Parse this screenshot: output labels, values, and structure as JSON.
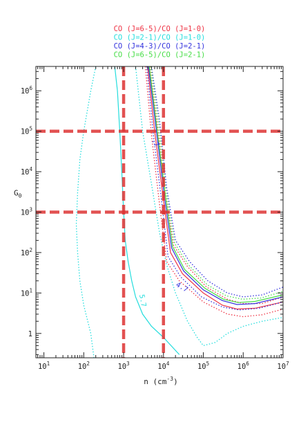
{
  "chart_data": {
    "type": "line",
    "xlabel": "n (cm",
    "xlabel_sup": "-3",
    "xlabel_end": ")",
    "ylabel": "G",
    "ylabel_sub": "0",
    "xscale": "log",
    "yscale": "log",
    "xlim": [
      6.3,
      10000000
    ],
    "ylim": [
      0.25,
      4000000
    ],
    "x_ticks": [
      {
        "exp": "1"
      },
      {
        "exp": "2"
      },
      {
        "exp": "3"
      },
      {
        "exp": "4"
      },
      {
        "exp": "5"
      },
      {
        "exp": "6"
      },
      {
        "exp": "7"
      }
    ],
    "y_ticks": [
      {
        "value": 1,
        "label": "1",
        "exp": ""
      },
      {
        "value": 10,
        "label": "10",
        "exp": "1"
      },
      {
        "value": 100,
        "label": "10",
        "exp": "2"
      },
      {
        "value": 1000,
        "label": "10",
        "exp": "3"
      },
      {
        "value": 10000,
        "label": "10",
        "exp": "4"
      },
      {
        "value": 100000,
        "label": "10",
        "exp": "5"
      },
      {
        "value": 1000000,
        "label": "10",
        "exp": "6"
      }
    ],
    "legend": [
      {
        "label": "CO (J=6-5)/CO (J=1-0)",
        "color": "#ee3344"
      },
      {
        "label": "CO (J=2-1)/CO (J=1-0)",
        "color": "#22dddd"
      },
      {
        "label": "CO (J=4-3)/CO (J=2-1)",
        "color": "#3333dd"
      },
      {
        "label": "CO (J=6-5)/CO (J=2-1)",
        "color": "#44dd44"
      }
    ],
    "contour_labels": [
      {
        "text": "5.7",
        "x": 2500,
        "y": 9,
        "color": "#22dddd",
        "rotate": 80
      },
      {
        "text": ".7",
        "x": 5000,
        "y": 60000,
        "color": "#3333dd",
        "rotate": 60
      },
      {
        "text": "4.7",
        "x": 20000,
        "y": 15,
        "color": "#3333dd",
        "rotate": 30
      }
    ],
    "reference_lines": {
      "color": "#dd3333",
      "vertical_x": [
        1000,
        10000
      ],
      "horizontal_y": [
        1000,
        100000
      ]
    },
    "series": [
      {
        "color": "#ee3344",
        "style": "solid",
        "x": [
          4000,
          6000,
          10000,
          15000,
          30000,
          100000,
          300000,
          700000,
          2000000,
          10000000
        ],
        "y": [
          4000000,
          100000,
          2000,
          100,
          30,
          10,
          5,
          4,
          4.2,
          6
        ]
      },
      {
        "color": "#ee3344",
        "style": "dotted",
        "x": [
          3500,
          5000,
          8000,
          12000,
          25000,
          100000,
          400000,
          1000000,
          3000000,
          10000000
        ],
        "y": [
          4000000,
          80000,
          1500,
          60,
          20,
          6,
          3,
          2.6,
          2.9,
          4
        ]
      },
      {
        "color": "#ee3344",
        "style": "dotted",
        "x": [
          4500,
          7000,
          11000,
          18000,
          40000,
          120000,
          400000,
          1000000,
          3000000,
          10000000
        ],
        "y": [
          4000000,
          150000,
          3000,
          150,
          45,
          14,
          7,
          5.5,
          5.5,
          8
        ]
      },
      {
        "color": "#22dddd",
        "style": "solid",
        "x": [
          600,
          700,
          800,
          900,
          1000,
          1100,
          1300,
          1600,
          2000,
          3000,
          5000,
          10000,
          25000
        ],
        "y": [
          4000000,
          1000000,
          100000,
          10000,
          1000,
          200,
          60,
          20,
          8,
          3,
          1.5,
          0.8,
          0.3
        ]
      },
      {
        "color": "#22dddd",
        "style": "dotted",
        "x": [
          200,
          150,
          100,
          80,
          70,
          65,
          70,
          80,
          100,
          150,
          180
        ],
        "y": [
          4000000,
          1000000,
          100000,
          20000,
          3000,
          500,
          100,
          20,
          5,
          1,
          0.25
        ]
      },
      {
        "color": "#22dddd",
        "style": "dotted",
        "x": [
          2000,
          3000,
          5000,
          8000,
          12000,
          20000,
          40000,
          70000,
          100000,
          200000,
          400000,
          1000000,
          3000000,
          10000000
        ],
        "y": [
          4000000,
          100000,
          5000,
          300,
          50,
          10,
          2,
          0.8,
          0.5,
          0.6,
          1,
          1.5,
          2,
          2.5
        ]
      },
      {
        "color": "#3333dd",
        "style": "solid",
        "x": [
          4200,
          6500,
          10500,
          16000,
          32000,
          100000,
          300000,
          700000,
          2000000,
          10000000
        ],
        "y": [
          4000000,
          120000,
          2500,
          130,
          35,
          12,
          6.5,
          5.2,
          5.5,
          8
        ]
      },
      {
        "color": "#3333dd",
        "style": "dotted",
        "x": [
          3800,
          5500,
          9000,
          13000,
          27000,
          90000,
          300000,
          800000,
          2500000,
          10000000
        ],
        "y": [
          4000000,
          90000,
          1800,
          80,
          25,
          8,
          4.5,
          3.8,
          4.2,
          6
        ]
      },
      {
        "color": "#3333dd",
        "style": "dotted",
        "x": [
          5000,
          8000,
          12000,
          20000,
          45000,
          130000,
          400000,
          1000000,
          3000000,
          10000000
        ],
        "y": [
          4000000,
          180000,
          4000,
          200,
          60,
          20,
          10,
          8,
          9,
          14
        ]
      },
      {
        "color": "#44dd44",
        "style": "solid",
        "x": [
          4400,
          6800,
          11000,
          17000,
          34000,
          110000,
          320000,
          750000,
          2000000,
          10000000
        ],
        "y": [
          4000000,
          130000,
          2800,
          140,
          38,
          13,
          7,
          5.8,
          6.2,
          9
        ]
      },
      {
        "color": "#44dd44",
        "style": "dotted",
        "x": [
          4800,
          7500,
          11500,
          19000,
          42000,
          125000,
          380000,
          950000,
          2800000,
          10000000
        ],
        "y": [
          4000000,
          160000,
          3500,
          170,
          50,
          16,
          8.5,
          7,
          7.5,
          11
        ]
      }
    ]
  }
}
